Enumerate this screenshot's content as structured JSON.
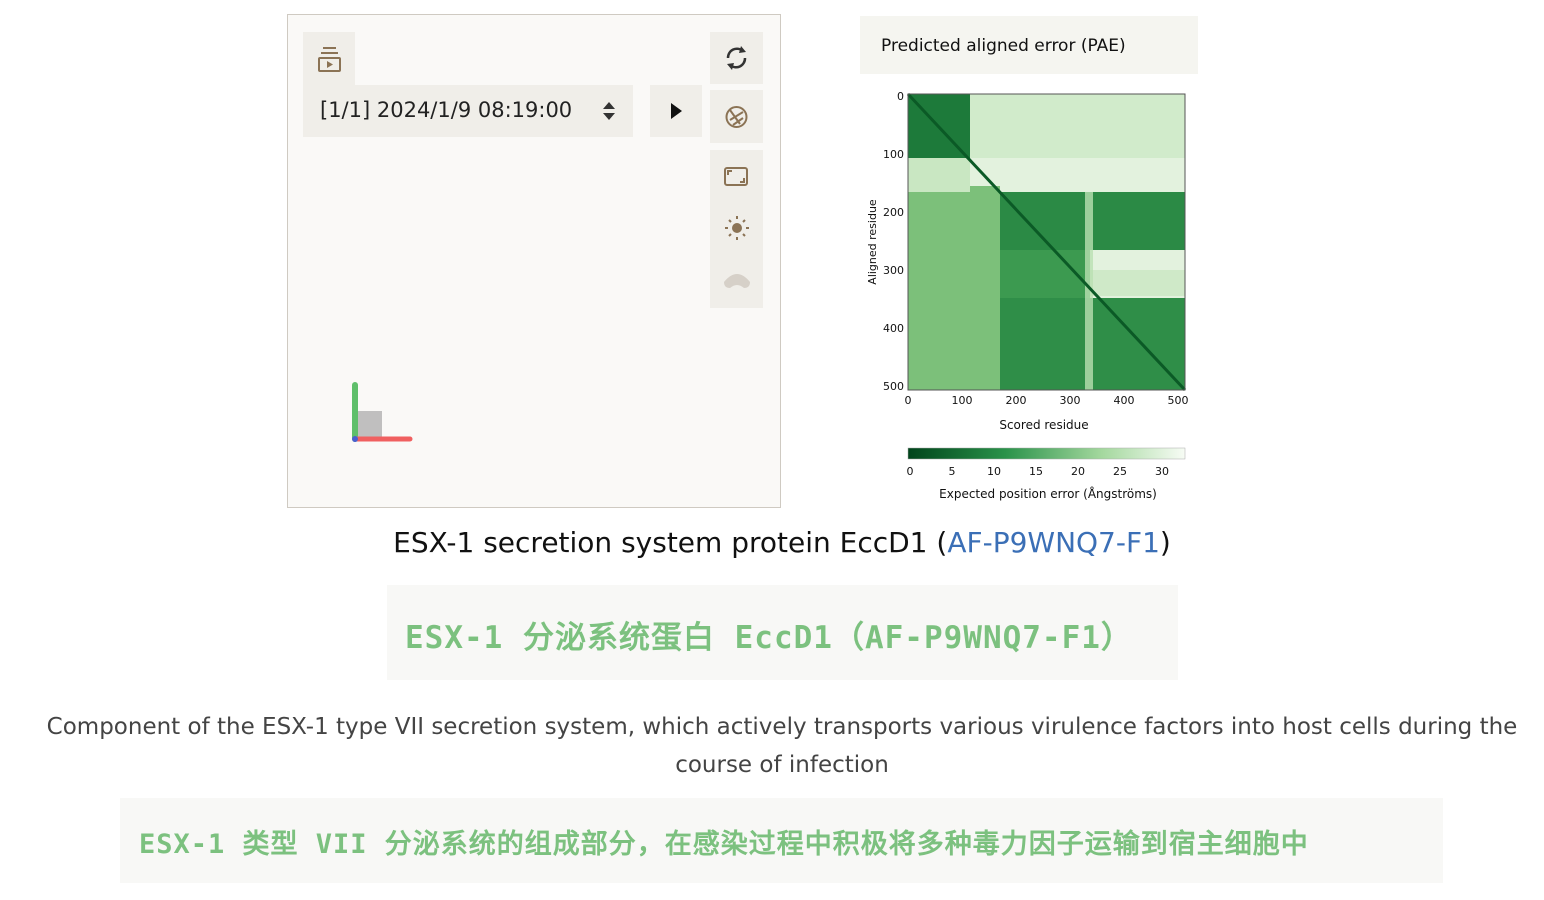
{
  "viewer": {
    "frame_label": "[1/1] 2024/1/9 08:19:00"
  },
  "pae": {
    "title": "Predicted aligned error (PAE)",
    "y_label": "Aligned residue",
    "x_label": "Scored residue",
    "y_ticks": [
      0,
      100,
      200,
      300,
      400,
      500
    ],
    "x_ticks": [
      0,
      100,
      200,
      300,
      400,
      500
    ],
    "colorbar_ticks": [
      0,
      5,
      10,
      15,
      20,
      25,
      30
    ],
    "colorbar_label": "Expected position error (Ångströms)"
  },
  "protein": {
    "title_before": "ESX-1 secretion system protein EccD1 (",
    "title_link": "AF-P9WNQ7-F1",
    "title_after": ")",
    "translation_title": "ESX-1 分泌系统蛋白 EccD1（AF-P9WNQ7-F1）",
    "description": "Component of the ESX-1 type VII secretion system, which actively transports various virulence factors into host cells during the course of infection",
    "translation_description": "ESX-1 类型 VII 分泌系统的组成部分，在感染过程中积极将多种毒力因子运输到宿主细胞中"
  }
}
